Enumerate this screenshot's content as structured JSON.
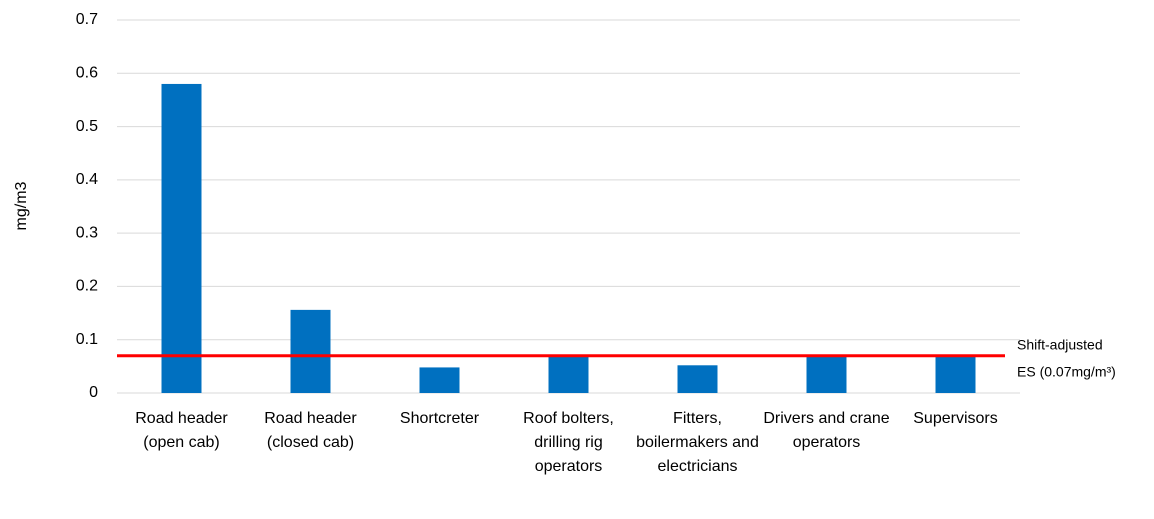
{
  "chart_data": {
    "type": "bar",
    "y_label": "mg/m3",
    "categories": [
      "Road header (open cab)",
      "Road header (closed cab)",
      "Shortcreter",
      "Roof bolters, drilling rig operators",
      "Fitters, boilermakers and electricians",
      "Drivers and crane operators",
      "Supervisors"
    ],
    "values": [
      0.58,
      0.156,
      0.048,
      0.072,
      0.052,
      0.072,
      0.071
    ],
    "color": "#0070c0",
    "ylim": [
      0,
      0.7
    ],
    "yticks": [
      0,
      0.1,
      0.2,
      0.3,
      0.4,
      0.5,
      0.6,
      0.7
    ],
    "grid": true,
    "reference_line": {
      "value": 0.07,
      "color": "#ff0000",
      "label_lines": [
        "Shift-adjusted",
        "ES (0.07mg/m³)"
      ]
    }
  }
}
